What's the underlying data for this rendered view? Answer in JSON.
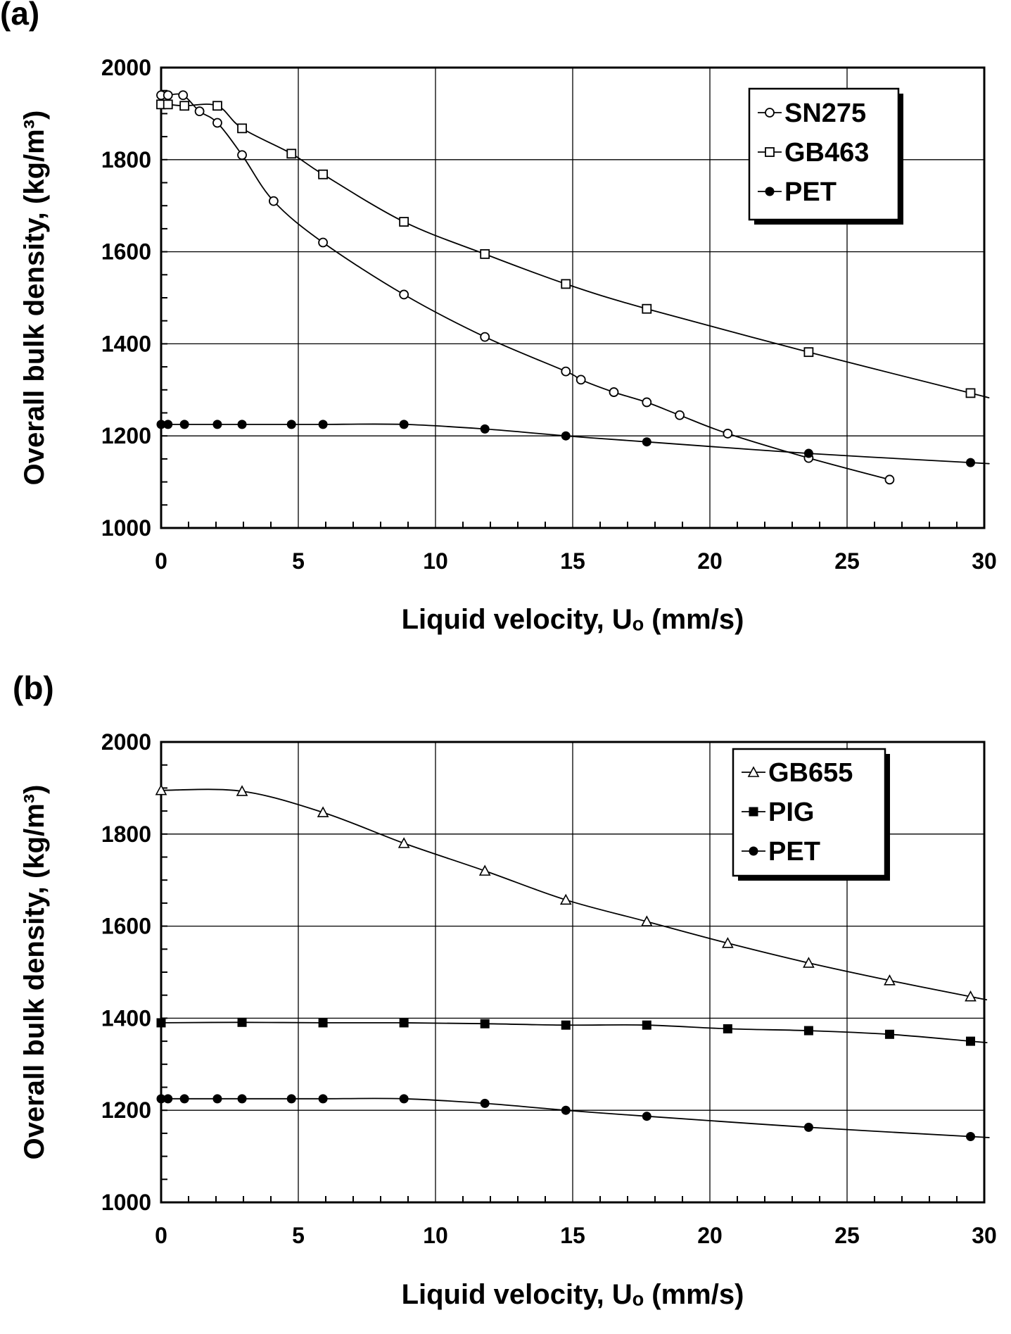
{
  "chart_data": [
    {
      "type": "line",
      "panel_label": "(a)",
      "xlabel": "Liquid velocity, Uₒ (mm/s)",
      "ylabel": "Overall bulk density, (kg/m³)",
      "xlim": [
        0,
        30
      ],
      "ylim": [
        1000,
        2000
      ],
      "xticks": [
        "0",
        "5",
        "10",
        "15",
        "20",
        "25",
        "30"
      ],
      "yticks": [
        "1000",
        "1200",
        "1400",
        "1600",
        "1800",
        "2000"
      ],
      "grid": true,
      "legend_position": "top-right",
      "series": [
        {
          "name": "SN275",
          "marker": "circle-open",
          "x": [
            0.0,
            0.25,
            0.8,
            1.4,
            2.05,
            2.95,
            4.1,
            5.9,
            8.85,
            11.8,
            14.75,
            15.3,
            16.5,
            17.7,
            18.9,
            20.65,
            23.6,
            26.55
          ],
          "y": [
            1940,
            1940,
            1940,
            1905,
            1880,
            1810,
            1710,
            1620,
            1507,
            1415,
            1340,
            1322,
            1295,
            1273,
            1245,
            1205,
            1152,
            1105
          ]
        },
        {
          "name": "GB463",
          "marker": "square-open",
          "x": [
            0.0,
            0.25,
            0.85,
            2.05,
            2.95,
            4.75,
            5.9,
            8.85,
            11.8,
            14.75,
            17.7,
            23.6,
            29.5
          ],
          "y": [
            1920,
            1920,
            1917,
            1917,
            1868,
            1813,
            1768,
            1665,
            1595,
            1530,
            1476,
            1382,
            1293
          ]
        },
        {
          "name": "PET",
          "marker": "circle-filled",
          "x": [
            0.0,
            0.25,
            0.85,
            2.05,
            2.95,
            4.75,
            5.9,
            8.85,
            11.8,
            14.75,
            17.7,
            23.6,
            29.5
          ],
          "y": [
            1225,
            1225,
            1225,
            1225,
            1225,
            1225,
            1225,
            1225,
            1215,
            1200,
            1187,
            1162,
            1142
          ]
        }
      ]
    },
    {
      "type": "line",
      "panel_label": "(b)",
      "xlabel": "Liquid velocity, Uₒ (mm/s)",
      "ylabel": "Overall bulk density, (kg/m³)",
      "xlim": [
        0,
        30
      ],
      "ylim": [
        1000,
        2000
      ],
      "xticks": [
        "0",
        "5",
        "10",
        "15",
        "20",
        "25",
        "30"
      ],
      "yticks": [
        "1000",
        "1200",
        "1400",
        "1600",
        "1800",
        "2000"
      ],
      "grid": true,
      "legend_position": "top-right",
      "series": [
        {
          "name": "GB655",
          "marker": "triangle-open",
          "x": [
            0.0,
            2.95,
            5.9,
            8.85,
            11.8,
            14.75,
            17.7,
            20.65,
            23.6,
            26.55,
            29.5
          ],
          "y": [
            1895,
            1893,
            1847,
            1780,
            1720,
            1657,
            1610,
            1563,
            1520,
            1482,
            1447
          ]
        },
        {
          "name": "PIG",
          "marker": "square-filled",
          "x": [
            0.0,
            2.95,
            5.9,
            8.85,
            11.8,
            14.75,
            17.7,
            20.65,
            23.6,
            26.55,
            29.5
          ],
          "y": [
            1390,
            1391,
            1390,
            1390,
            1388,
            1385,
            1385,
            1377,
            1373,
            1365,
            1350
          ]
        },
        {
          "name": "PET",
          "marker": "circle-filled",
          "x": [
            0.0,
            0.25,
            0.85,
            2.05,
            2.95,
            4.75,
            5.9,
            8.85,
            11.8,
            14.75,
            17.7,
            23.6,
            29.5
          ],
          "y": [
            1225,
            1225,
            1225,
            1225,
            1225,
            1225,
            1225,
            1225,
            1215,
            1200,
            1187,
            1163,
            1143
          ]
        }
      ]
    }
  ]
}
